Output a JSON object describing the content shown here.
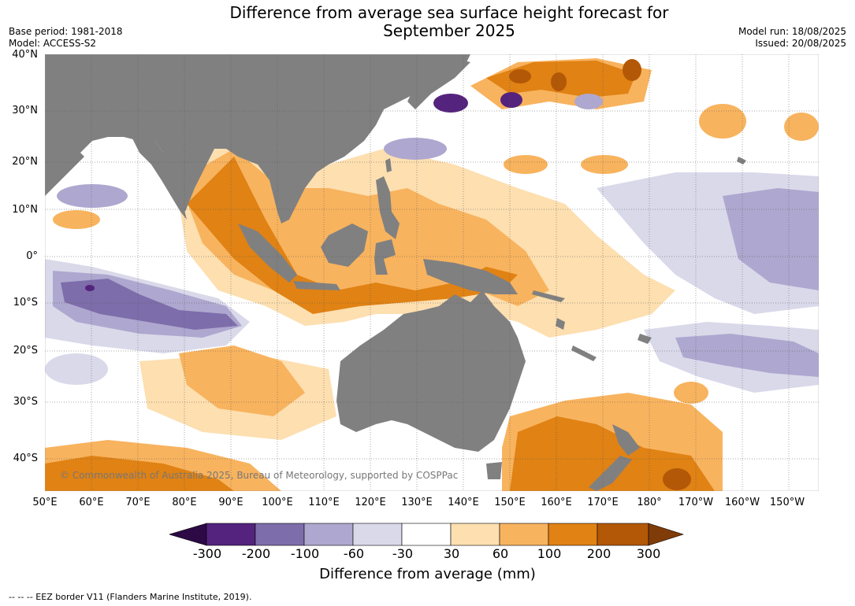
{
  "title_line1": "Difference from average sea surface height forecast for",
  "title_line2": "September 2025",
  "meta": {
    "base_period": "Base period: 1981-2018",
    "model": "Model: ACCESS-S2",
    "model_run": "Model run: 18/08/2025",
    "issued": "Issued: 20/08/2025"
  },
  "map": {
    "lat_labels": [
      "40°N",
      "30°N",
      "20°N",
      "10°N",
      "0°",
      "10°S",
      "20°S",
      "30°S",
      "40°S"
    ],
    "lon_labels": [
      "50°E",
      "60°E",
      "70°E",
      "80°E",
      "90°E",
      "100°E",
      "110°E",
      "120°E",
      "130°E",
      "140°E",
      "150°E",
      "160°E",
      "170°E",
      "180°",
      "170°W",
      "160°W",
      "150°W"
    ],
    "land_color": "#808080",
    "copyright": "© Commonwealth of Australia 2025, Bureau of Meteorology, supported by COSPPac"
  },
  "legend": {
    "tick_labels": [
      "-300",
      "-200",
      "-100",
      "-60",
      "-30",
      "30",
      "60",
      "100",
      "200",
      "300"
    ],
    "label": "Difference from average (mm)",
    "colors": [
      "#2d0a45",
      "#54237e",
      "#7d6daa",
      "#aea7cf",
      "#d9d9ea",
      "#ffffff",
      "#fddfb0",
      "#f8b35e",
      "#e08214",
      "#b35806",
      "#7f3b08"
    ]
  },
  "footnote": "--  --  -- EEZ border V11 (Flanders Marine Institute, 2019)."
}
